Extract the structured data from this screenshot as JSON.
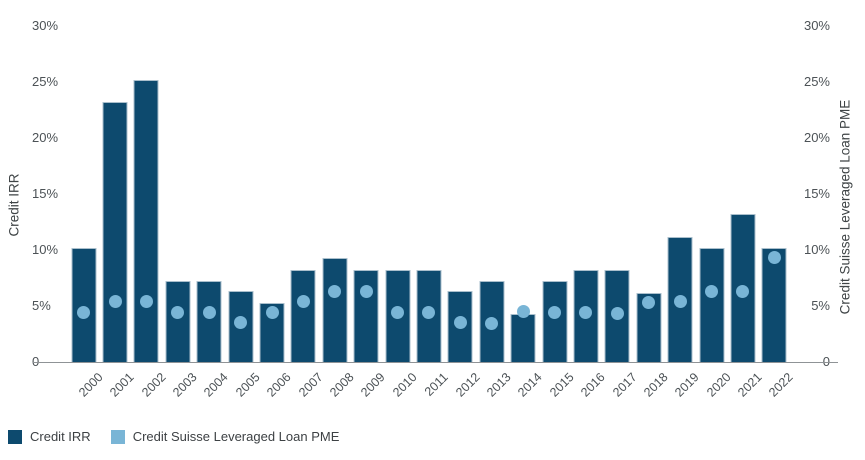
{
  "chart_data": {
    "type": "bar",
    "title": "",
    "categories": [
      "2000",
      "2001",
      "2002",
      "2003",
      "2004",
      "2005",
      "2006",
      "2007",
      "2008",
      "2009",
      "2010",
      "2011",
      "2012",
      "2013",
      "2014",
      "2015",
      "2016",
      "2017",
      "2018",
      "2019",
      "2020",
      "2021",
      "2022"
    ],
    "series": [
      {
        "name": "Credit IRR",
        "render": "bar",
        "color": "#0d4a6e",
        "values": [
          10.2,
          23.2,
          25.2,
          7.2,
          7.2,
          6.3,
          5.3,
          8.2,
          9.3,
          8.2,
          8.2,
          8.2,
          6.3,
          7.2,
          4.3,
          7.2,
          8.2,
          8.2,
          6.2,
          11.2,
          10.2,
          13.2,
          10.2
        ]
      },
      {
        "name": "Credit Suisse Leveraged Loan PME",
        "render": "point",
        "color": "#79b5d6",
        "values": [
          4.4,
          5.4,
          5.4,
          4.4,
          4.4,
          3.5,
          4.4,
          5.4,
          6.3,
          6.3,
          4.4,
          4.4,
          3.5,
          3.4,
          4.5,
          4.4,
          4.4,
          4.3,
          5.3,
          5.4,
          6.3,
          6.3,
          9.3
        ]
      }
    ],
    "ylabel_left": "Credit IRR",
    "ylabel_right": "Credit Suisse Leveraged Loan PME",
    "xlabel": "",
    "ylim": [
      0,
      30
    ],
    "y_ticks": [
      {
        "value": 0,
        "label": "0"
      },
      {
        "value": 5,
        "label": "5%"
      },
      {
        "value": 10,
        "label": "10%"
      },
      {
        "value": 15,
        "label": "15%"
      },
      {
        "value": 20,
        "label": "20%"
      },
      {
        "value": 25,
        "label": "25%"
      },
      {
        "value": 30,
        "label": "30%"
      }
    ],
    "grid": false,
    "legend_position": "bottom-left",
    "legend": [
      {
        "label": "Credit IRR",
        "color": "#0d4a6e"
      },
      {
        "label": "Credit Suisse Leveraged Loan PME",
        "color": "#79b5d6"
      }
    ]
  },
  "colors": {
    "bar_fill": "#0d4a6e",
    "bar_border": "#aabfcc",
    "point_fill": "#79b5d6",
    "axis_line": "#8f9396",
    "tick_text": "#4c5256",
    "background": "#ffffff"
  }
}
